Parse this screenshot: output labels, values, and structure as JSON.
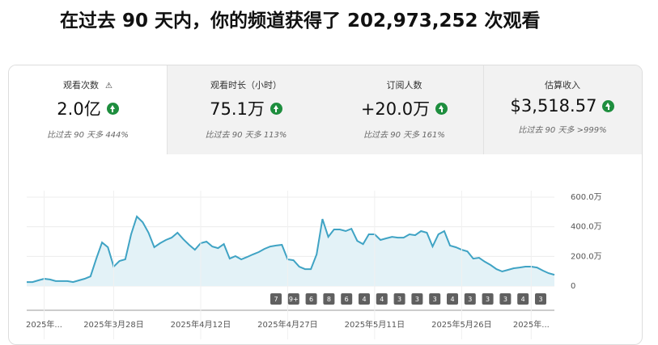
{
  "header": {
    "title": "在过去 90 天内，你的频道获得了 202,973,252 次观看"
  },
  "cards": [
    {
      "label": "观看次数",
      "value": "2.0亿",
      "compare": "比过去 90 天多 444%"
    },
    {
      "label": "观看时长（小时）",
      "value": "75.1万",
      "compare": "比过去 90 天多 113%"
    },
    {
      "label": "订阅人数",
      "value": "+20.0万",
      "compare": "比过去 90 天多 161%"
    },
    {
      "label": "估算收入",
      "value": "$3,518.57",
      "compare": "比过去 90 天多 >999%"
    }
  ],
  "chart_data": {
    "type": "area",
    "color": "#3fa3c4",
    "fill": "#e3f2f7",
    "grid": true,
    "ylim": [
      0,
      600
    ],
    "yticks": [
      0,
      {
        "value": 200,
        "label": "200.0万"
      },
      {
        "value": 400,
        "label": "400.0万"
      },
      {
        "value": 600,
        "label": "600.0万"
      }
    ],
    "categories": [
      null,
      null,
      null,
      "2025年...",
      null,
      null,
      null,
      null,
      null,
      null,
      null,
      null,
      null,
      null,
      null,
      "2025年3月28日",
      null,
      null,
      null,
      null,
      null,
      null,
      null,
      null,
      null,
      null,
      null,
      null,
      null,
      null,
      "2025年4月12日",
      null,
      null,
      null,
      null,
      null,
      null,
      null,
      null,
      null,
      null,
      null,
      null,
      null,
      null,
      "2025年4月27日",
      null,
      null,
      null,
      null,
      null,
      null,
      null,
      null,
      null,
      null,
      null,
      null,
      null,
      null,
      "2025年5月11日",
      null,
      null,
      null,
      null,
      null,
      null,
      null,
      null,
      null,
      null,
      null,
      null,
      null,
      null,
      "2025年5月26日",
      null,
      null,
      null,
      null,
      null,
      null,
      null,
      null,
      null,
      null,
      null,
      "2025年...",
      null,
      null,
      null,
      null
    ],
    "values": [
      27,
      27,
      38,
      49,
      44,
      33,
      33,
      33,
      27,
      38,
      49,
      65,
      185,
      294,
      262,
      131,
      169,
      180,
      349,
      469,
      431,
      360,
      262,
      289,
      311,
      327,
      360,
      316,
      278,
      245,
      289,
      300,
      267,
      256,
      283,
      185,
      202,
      180,
      196,
      213,
      229,
      251,
      267,
      273,
      278,
      180,
      174,
      131,
      114,
      114,
      213,
      452,
      332,
      382,
      382,
      371,
      387,
      305,
      283,
      349,
      349,
      311,
      322,
      332,
      327,
      327,
      349,
      343,
      371,
      360,
      267,
      349,
      371,
      273,
      262,
      245,
      234,
      185,
      191,
      164,
      142,
      114,
      98,
      109,
      120,
      125,
      131,
      131,
      125,
      104,
      87,
      76
    ],
    "markers": [
      "7",
      "9+",
      "6",
      "8",
      "6",
      "4",
      "4",
      "3",
      "3",
      "3",
      "4",
      "3",
      "3",
      "3",
      "4",
      "3"
    ]
  }
}
